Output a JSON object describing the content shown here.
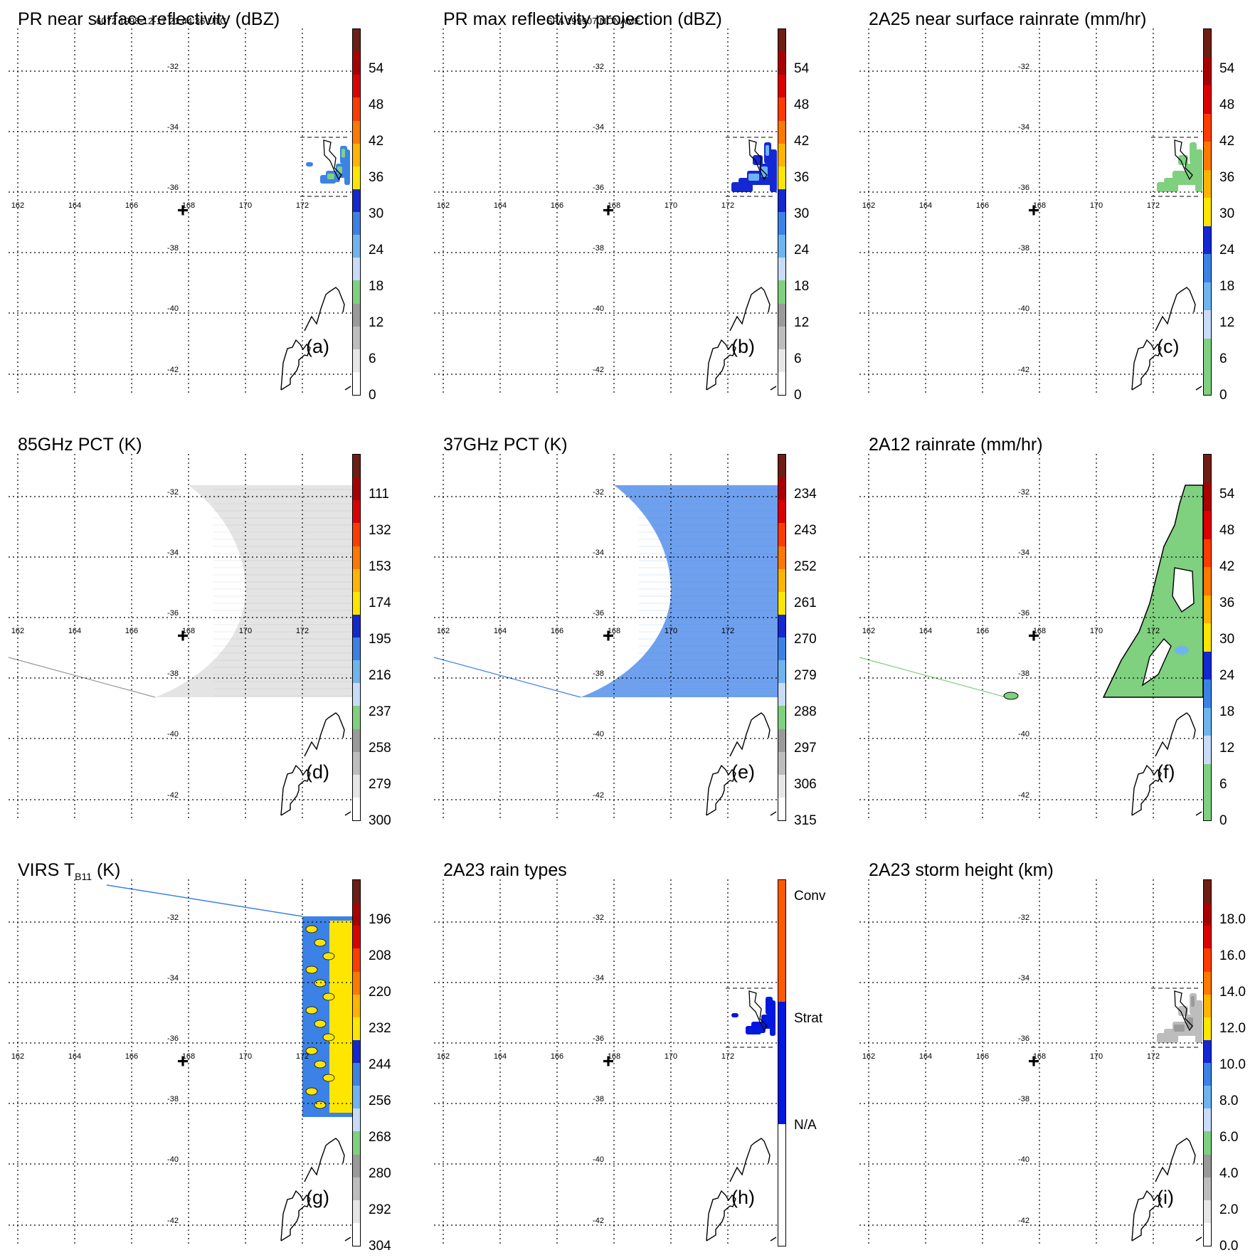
{
  "header": {
    "left": "6072 1998-12-17 21:44:36 UTC",
    "center": "SPA 199907 NONAME"
  },
  "map": {
    "lat_labels": [
      "-32",
      "-34",
      "-36",
      "-38",
      "-40",
      "-42"
    ],
    "lon_labels": [
      "162",
      "164",
      "166",
      "168",
      "170",
      "172"
    ],
    "lat_values": [
      -32,
      -34,
      -36,
      -38,
      -40,
      -42
    ],
    "lon_values": [
      162,
      164,
      166,
      168,
      170,
      172
    ],
    "center": {
      "lon": 167.8,
      "lat": -36.6
    }
  },
  "colors": {
    "scale": [
      "#ffffff",
      "#e6e6e6",
      "#bdbdbd",
      "#9a9a9a",
      "#7fd07f",
      "#c8dcfa",
      "#6eb4f0",
      "#3c82e6",
      "#1428d2",
      "#ffe600",
      "#ffb400",
      "#ff7800",
      "#ff3c00",
      "#dc0000",
      "#aa0000",
      "#6e1e14"
    ],
    "rain_types": [
      "#ffffff",
      "#0018e0",
      "#ff5a00"
    ]
  },
  "panels": [
    {
      "id": "a",
      "title": "PR near surface reflectivity (dBZ)",
      "label": "(a)",
      "ticks": [
        "0",
        "6",
        "12",
        "18",
        "24",
        "30",
        "36",
        "42",
        "48",
        "54"
      ],
      "scale": "std",
      "overlay": "pr_small"
    },
    {
      "id": "b",
      "title": "PR max reflectivity projection (dBZ)",
      "label": "(b)",
      "ticks": [
        "0",
        "6",
        "12",
        "18",
        "24",
        "30",
        "36",
        "42",
        "48",
        "54"
      ],
      "scale": "std",
      "overlay": "pr_small_dense"
    },
    {
      "id": "c",
      "title": "2A25 near surface rainrate (mm/hr)",
      "label": "(c)",
      "ticks": [
        "0",
        "6",
        "12",
        "18",
        "24",
        "30",
        "36",
        "42",
        "48",
        "54"
      ],
      "scale": "rain",
      "overlay": "pr_small_green"
    },
    {
      "id": "d",
      "title": "85GHz PCT (K)",
      "label": "(d)",
      "ticks": [
        "300",
        "279",
        "258",
        "237",
        "216",
        "195",
        "174",
        "153",
        "132",
        "111"
      ],
      "scale": "std",
      "overlay": "swath_gray"
    },
    {
      "id": "e",
      "title": "37GHz PCT (K)",
      "label": "(e)",
      "ticks": [
        "315",
        "306",
        "297",
        "288",
        "279",
        "270",
        "261",
        "252",
        "243",
        "234"
      ],
      "scale": "std",
      "overlay": "swath_blue"
    },
    {
      "id": "f",
      "title": "2A12 rainrate (mm/hr)",
      "label": "(f)",
      "ticks": [
        "0",
        "6",
        "12",
        "18",
        "24",
        "30",
        "36",
        "42",
        "48",
        "54"
      ],
      "scale": "rain",
      "overlay": "tmi_green"
    },
    {
      "id": "g",
      "title": "VIRS T",
      "title_sub": "B11",
      "title_tail": " (K)",
      "label": "(g)",
      "ticks": [
        "304",
        "292",
        "280",
        "268",
        "256",
        "244",
        "232",
        "220",
        "208",
        "196"
      ],
      "scale": "std",
      "overlay": "virs"
    },
    {
      "id": "h",
      "title": "2A23 rain types",
      "label": "(h)",
      "ticks": [
        "N/A",
        "Strat",
        "Conv"
      ],
      "scale": "types",
      "overlay": "pr_small_blue"
    },
    {
      "id": "i",
      "title": "2A23 storm height (km)",
      "label": "(i)",
      "ticks": [
        "0.0",
        "2.0",
        "4.0",
        "6.0",
        "8.0",
        "10.0",
        "12.0",
        "14.0",
        "16.0",
        "18.0"
      ],
      "scale": "std",
      "overlay": "pr_small_gray"
    }
  ]
}
